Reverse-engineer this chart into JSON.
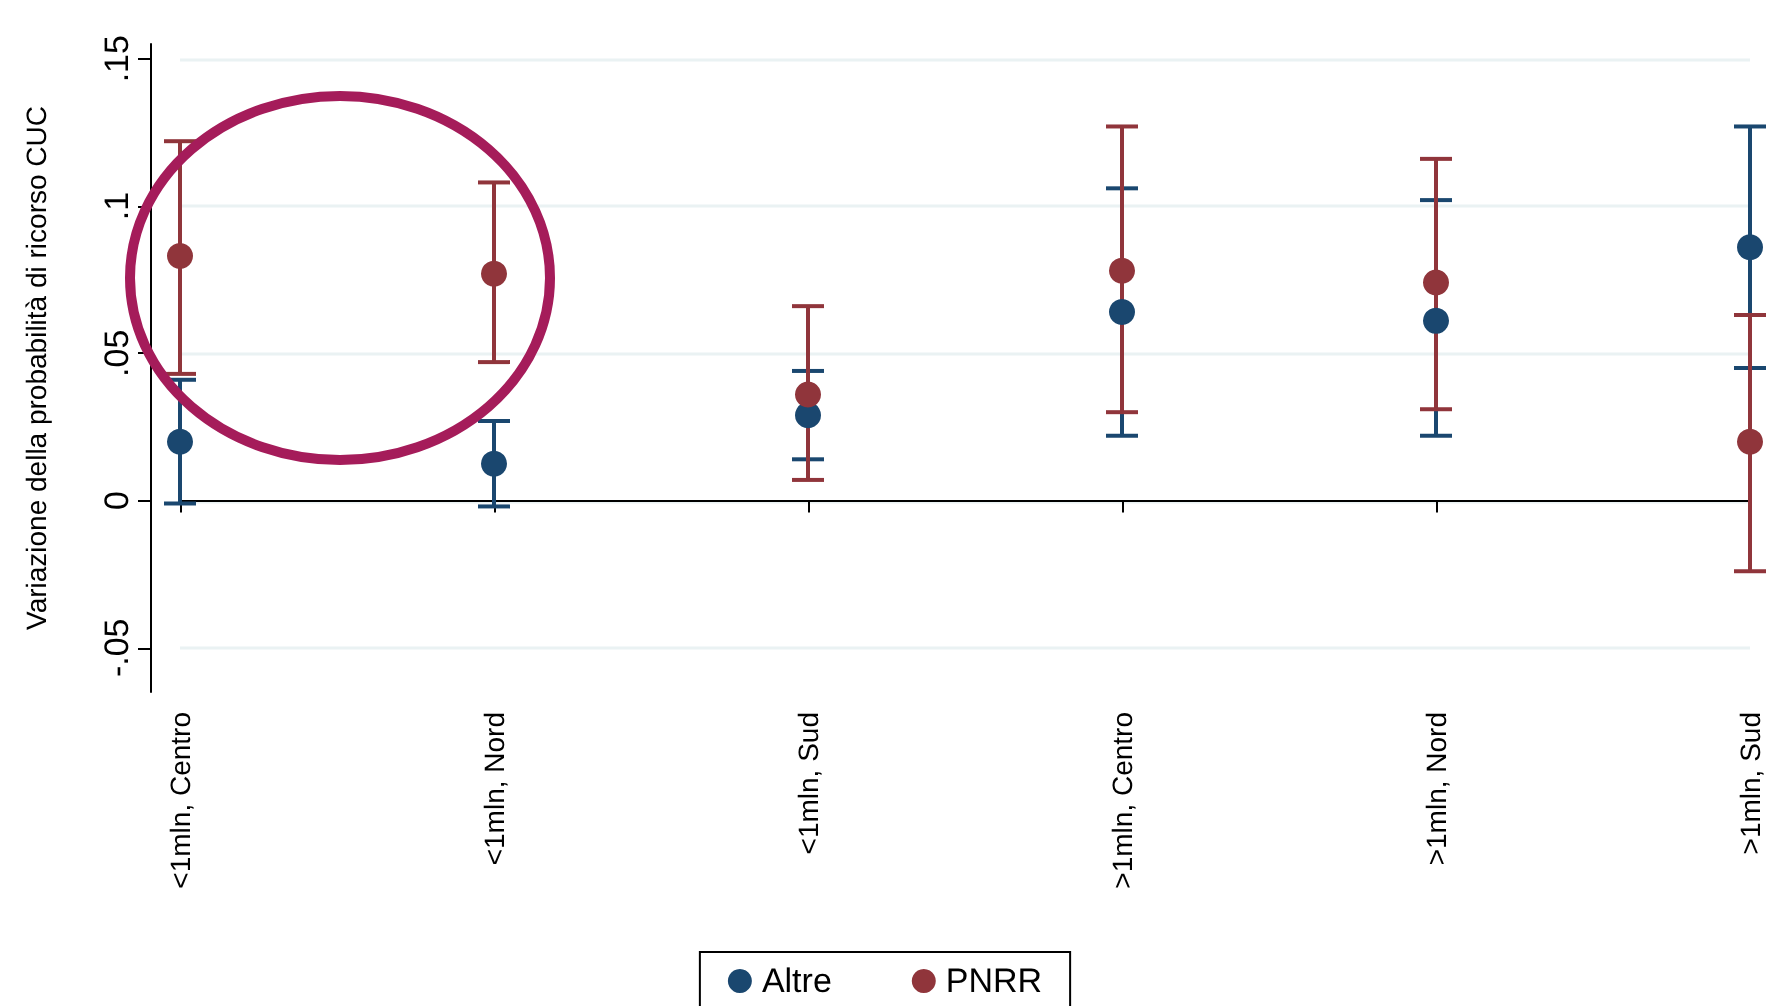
{
  "chart_data": {
    "type": "scatter",
    "ylabel": "Variazione della probabilità di ricorso CUC",
    "categories": [
      "<1mln, Centro",
      "<1mln, Nord",
      "<1mln, Sud",
      ">1mln, Centro",
      ">1mln, Nord",
      ">1mln, Sud"
    ],
    "series": [
      {
        "name": "Altre",
        "color": "#1a476f",
        "values": [
          0.02,
          0.0125,
          0.029,
          0.064,
          0.061,
          0.086
        ],
        "errors": [
          [
            -0.001,
            0.041
          ],
          [
            -0.002,
            0.027
          ],
          [
            0.014,
            0.044
          ],
          [
            0.022,
            0.106
          ],
          [
            0.022,
            0.102
          ],
          [
            0.045,
            0.127
          ]
        ]
      },
      {
        "name": "PNRR",
        "color": "#90353b",
        "values": [
          0.083,
          0.077,
          0.036,
          0.078,
          0.074,
          0.02
        ],
        "errors": [
          [
            0.043,
            0.122
          ],
          [
            0.047,
            0.108
          ],
          [
            0.007,
            0.066
          ],
          [
            0.03,
            0.127
          ],
          [
            0.031,
            0.116
          ],
          [
            -0.024,
            0.063
          ]
        ]
      }
    ],
    "ylim": [
      -0.065,
      0.155
    ],
    "yticks": [
      {
        "value": -0.05,
        "label": "-.05"
      },
      {
        "value": 0,
        "label": "0"
      },
      {
        "value": 0.05,
        "label": ".05"
      },
      {
        "value": 0.1,
        "label": ".1"
      },
      {
        "value": 0.15,
        "label": ".15"
      }
    ],
    "grid": "y",
    "legend": "bottom",
    "marker": "circle"
  }
}
